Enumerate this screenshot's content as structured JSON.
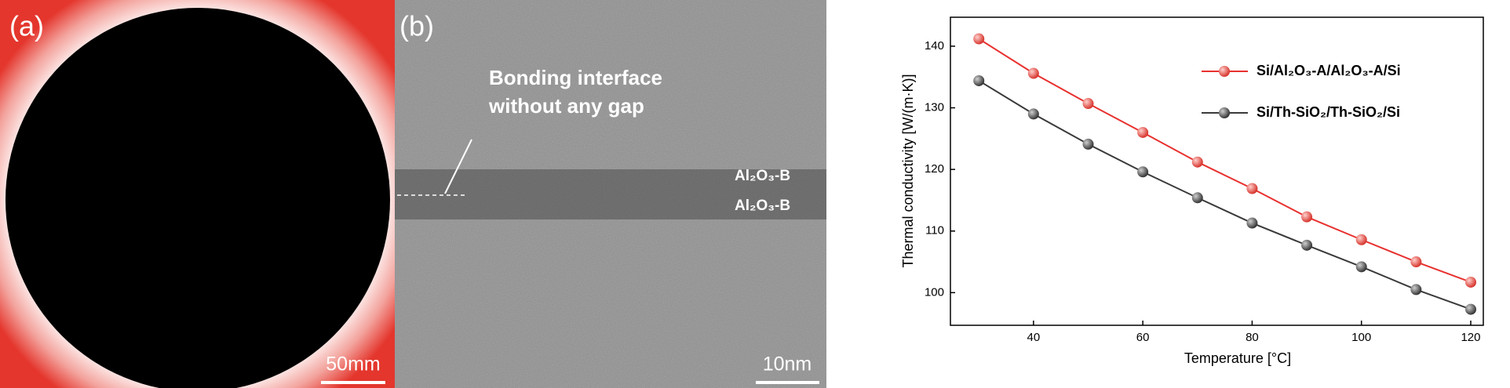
{
  "images": {
    "a": {
      "label": "(a)",
      "scale": "50mm"
    },
    "b": {
      "label": "(b)",
      "annotation": [
        "Bonding interface",
        "without any gap"
      ],
      "layers": [
        "Al₂O₃-B",
        "Al₂O₃-B"
      ],
      "scale": "10nm"
    }
  },
  "chart_data": {
    "type": "line",
    "x_label": "Temperature [°C]",
    "y_label": "Thermal conductivity [W/(m·K)]",
    "x": [
      30,
      40,
      50,
      60,
      70,
      80,
      90,
      100,
      110,
      120
    ],
    "series": [
      {
        "name": "Si/Al₂O₃-A/Al₂O₃-A/Si",
        "color": "#e8312f",
        "values": [
          141.2,
          135.6,
          130.7,
          126.0,
          121.2,
          116.9,
          112.3,
          108.6,
          105.0,
          101.7
        ]
      },
      {
        "name": "Si/Th-SiO₂/Th-SiO₂/Si",
        "color": "#3a3a3a",
        "values": [
          134.4,
          129.0,
          124.1,
          119.6,
          115.4,
          111.3,
          107.7,
          104.2,
          100.5,
          97.3
        ]
      }
    ],
    "xlim": [
      24.8,
      122.3
    ],
    "ylim": [
      94.7,
      144.7
    ],
    "xticks": [
      40,
      60,
      80,
      100,
      120
    ],
    "yticks": [
      100,
      110,
      120,
      130,
      140
    ],
    "legend": "upper right"
  }
}
